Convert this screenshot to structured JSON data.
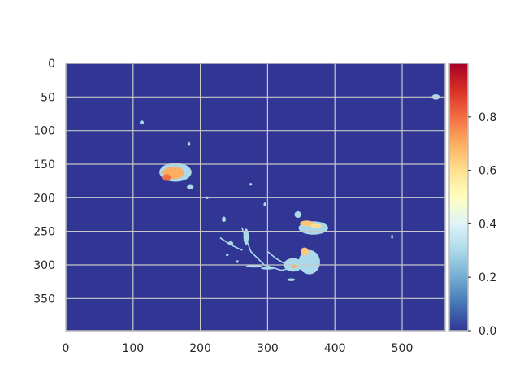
{
  "chart_data": {
    "type": "heatmap",
    "title": "",
    "xlabel": "",
    "ylabel": "",
    "xlim": [
      0,
      564
    ],
    "ylim": [
      398,
      0
    ],
    "x_ticks": [
      0,
      100,
      200,
      300,
      400,
      500
    ],
    "y_ticks": [
      0,
      50,
      100,
      150,
      200,
      250,
      300,
      350
    ],
    "grid": true,
    "colormap": "RdYlBu_r",
    "background_color": "#313695",
    "colorbar": {
      "range": [
        0.0,
        1.0
      ],
      "ticks": [
        0.0,
        0.2,
        0.4,
        0.6,
        0.8
      ],
      "tick_labels": [
        "0.0",
        "0.2",
        "0.4",
        "0.6",
        "0.8"
      ],
      "stops": [
        {
          "value": 0.0,
          "color": "#313695"
        },
        {
          "value": 0.1,
          "color": "#4575b4"
        },
        {
          "value": 0.2,
          "color": "#74add1"
        },
        {
          "value": 0.3,
          "color": "#abd9e9"
        },
        {
          "value": 0.4,
          "color": "#e0f3f8"
        },
        {
          "value": 0.5,
          "color": "#ffffbf"
        },
        {
          "value": 0.6,
          "color": "#fee090"
        },
        {
          "value": 0.7,
          "color": "#fdae61"
        },
        {
          "value": 0.8,
          "color": "#f46d43"
        },
        {
          "value": 0.9,
          "color": "#d73027"
        },
        {
          "value": 1.0,
          "color": "#a50026"
        }
      ]
    },
    "regions": [
      {
        "x": 550,
        "y": 50,
        "rx": 6,
        "ry": 4,
        "value": 0.3
      },
      {
        "x": 113,
        "y": 88,
        "rx": 3,
        "ry": 3,
        "value": 0.3
      },
      {
        "x": 163,
        "y": 162,
        "rx": 24,
        "ry": 14,
        "value": 0.3
      },
      {
        "x": 160,
        "y": 163,
        "rx": 16,
        "ry": 9,
        "value": 0.7
      },
      {
        "x": 150,
        "y": 170,
        "rx": 6,
        "ry": 5,
        "value": 0.8
      },
      {
        "x": 185,
        "y": 184,
        "rx": 5,
        "ry": 3,
        "value": 0.3
      },
      {
        "x": 183,
        "y": 120,
        "rx": 2,
        "ry": 3,
        "value": 0.3
      },
      {
        "x": 210,
        "y": 200,
        "rx": 2,
        "ry": 2,
        "value": 0.3
      },
      {
        "x": 235,
        "y": 232,
        "rx": 3,
        "ry": 4,
        "value": 0.3
      },
      {
        "x": 245,
        "y": 268,
        "rx": 4,
        "ry": 3,
        "value": 0.3
      },
      {
        "x": 268,
        "y": 258,
        "rx": 4,
        "ry": 12,
        "value": 0.3
      },
      {
        "x": 280,
        "y": 302,
        "rx": 12,
        "ry": 2,
        "value": 0.3
      },
      {
        "x": 300,
        "y": 305,
        "rx": 10,
        "ry": 2,
        "value": 0.3
      },
      {
        "x": 338,
        "y": 300,
        "rx": 14,
        "ry": 10,
        "value": 0.3
      },
      {
        "x": 362,
        "y": 296,
        "rx": 16,
        "ry": 18,
        "value": 0.3
      },
      {
        "x": 368,
        "y": 245,
        "rx": 22,
        "ry": 10,
        "value": 0.3
      },
      {
        "x": 358,
        "y": 238,
        "rx": 10,
        "ry": 4,
        "value": 0.65
      },
      {
        "x": 372,
        "y": 242,
        "rx": 8,
        "ry": 3,
        "value": 0.6
      },
      {
        "x": 355,
        "y": 280,
        "rx": 6,
        "ry": 6,
        "value": 0.65
      },
      {
        "x": 340,
        "y": 302,
        "rx": 3,
        "ry": 3,
        "value": 0.7
      },
      {
        "x": 345,
        "y": 225,
        "rx": 5,
        "ry": 5,
        "value": 0.3
      },
      {
        "x": 335,
        "y": 322,
        "rx": 6,
        "ry": 2,
        "value": 0.3
      },
      {
        "x": 296,
        "y": 210,
        "rx": 2,
        "ry": 3,
        "value": 0.3
      },
      {
        "x": 255,
        "y": 295,
        "rx": 2,
        "ry": 2,
        "value": 0.3
      },
      {
        "x": 240,
        "y": 285,
        "rx": 2,
        "ry": 2,
        "value": 0.3
      },
      {
        "x": 485,
        "y": 258,
        "rx": 1.5,
        "ry": 3,
        "value": 0.3
      },
      {
        "x": 275,
        "y": 180,
        "rx": 2,
        "ry": 2,
        "value": 0.3
      }
    ],
    "paths": [
      {
        "points": [
          [
            262,
            245
          ],
          [
            275,
            280
          ],
          [
            295,
            300
          ],
          [
            320,
            308
          ],
          [
            335,
            305
          ]
        ],
        "value": 0.3
      },
      {
        "points": [
          [
            230,
            260
          ],
          [
            245,
            270
          ],
          [
            262,
            278
          ]
        ],
        "value": 0.3
      },
      {
        "points": [
          [
            300,
            280
          ],
          [
            312,
            290
          ],
          [
            325,
            298
          ]
        ],
        "value": 0.3
      }
    ]
  }
}
